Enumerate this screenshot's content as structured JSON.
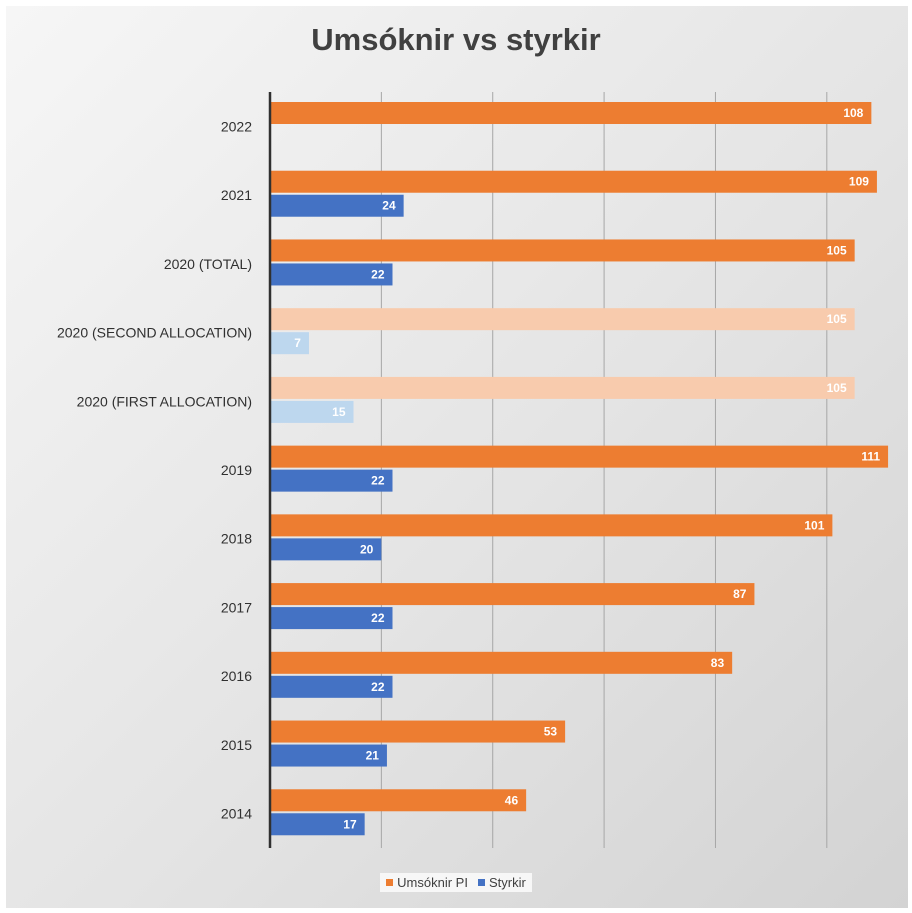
{
  "chart_data": {
    "type": "bar",
    "orientation": "horizontal",
    "title": "Umsóknir vs styrkir",
    "categories": [
      "2022",
      "2021",
      "2020 (TOTAL)",
      "2020 (SECOND ALLOCATION)",
      "2020 (FIRST ALLOCATION)",
      "2019",
      "2018",
      "2017",
      "2016",
      "2015",
      "2014"
    ],
    "series": [
      {
        "name": "Umsóknir PI",
        "color": "#ed7d31",
        "values": [
          108,
          109,
          105,
          105,
          105,
          111,
          101,
          87,
          83,
          53,
          46
        ]
      },
      {
        "name": "Styrkir",
        "color": "#4472c4",
        "values": [
          null,
          24,
          22,
          7,
          15,
          22,
          20,
          22,
          22,
          21,
          17
        ]
      }
    ],
    "faded_categories": [
      "2020 (SECOND ALLOCATION)",
      "2020 (FIRST ALLOCATION)"
    ],
    "faded_colors": {
      "Umsóknir PI": "#f8cbad",
      "Styrkir": "#bdd7ee"
    },
    "xlim": [
      0,
      110
    ],
    "grid": true,
    "legend": "bottom",
    "data_labels": true
  }
}
